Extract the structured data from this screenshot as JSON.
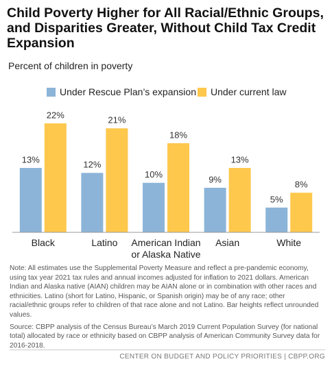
{
  "chart_data": {
    "type": "grouped-bar",
    "title": "Child Poverty Higher for All Racial/Ethnic Groups, and Disparities Greater, Without Child Tax Credit Expansion",
    "subtitle": "Percent of children in poverty",
    "categories": [
      "Black",
      "Latino",
      "American Indian or Alaska Native",
      "Asian",
      "White"
    ],
    "series": [
      {
        "name": "Under Rescue Plan’s expansion",
        "color": "#8cb4d8",
        "values": [
          13,
          12,
          10,
          9,
          5
        ],
        "value_labels": [
          "13%",
          "12%",
          "10%",
          "9%",
          "5%"
        ]
      },
      {
        "name": "Under current law",
        "color": "#fec84d",
        "values": [
          22,
          21,
          18,
          13,
          8
        ],
        "value_labels": [
          "22%",
          "21%",
          "18%",
          "13%",
          "8%"
        ]
      }
    ],
    "notes": [
      "Note: All estimates use the Supplemental Poverty Measure and reflect a pre-pandemic economy, using tax year 2021 tax rules and annual incomes adjusted for inflation to 2021 dollars. American Indian and Alaska native (AIAN) children may be AIAN alone or in combination with other races and ethnicities. Latino (short for Latino, Hispanic, or Spanish origin) may be of any race; other racial/ethnic groups refer to children of that race alone and not Latino. Bar heights reflect unrounded values.",
      "Source: CBPP analysis of the Census Bureau’s March 2019 Current Population Survey (for national total) allocated by race or ethnicity based on CBPP analysis of American Community Survey data for 2016-2018."
    ],
    "footer": "CENTER ON BUDGET AND POLICY PRIORITIES | CBPP.ORG"
  }
}
